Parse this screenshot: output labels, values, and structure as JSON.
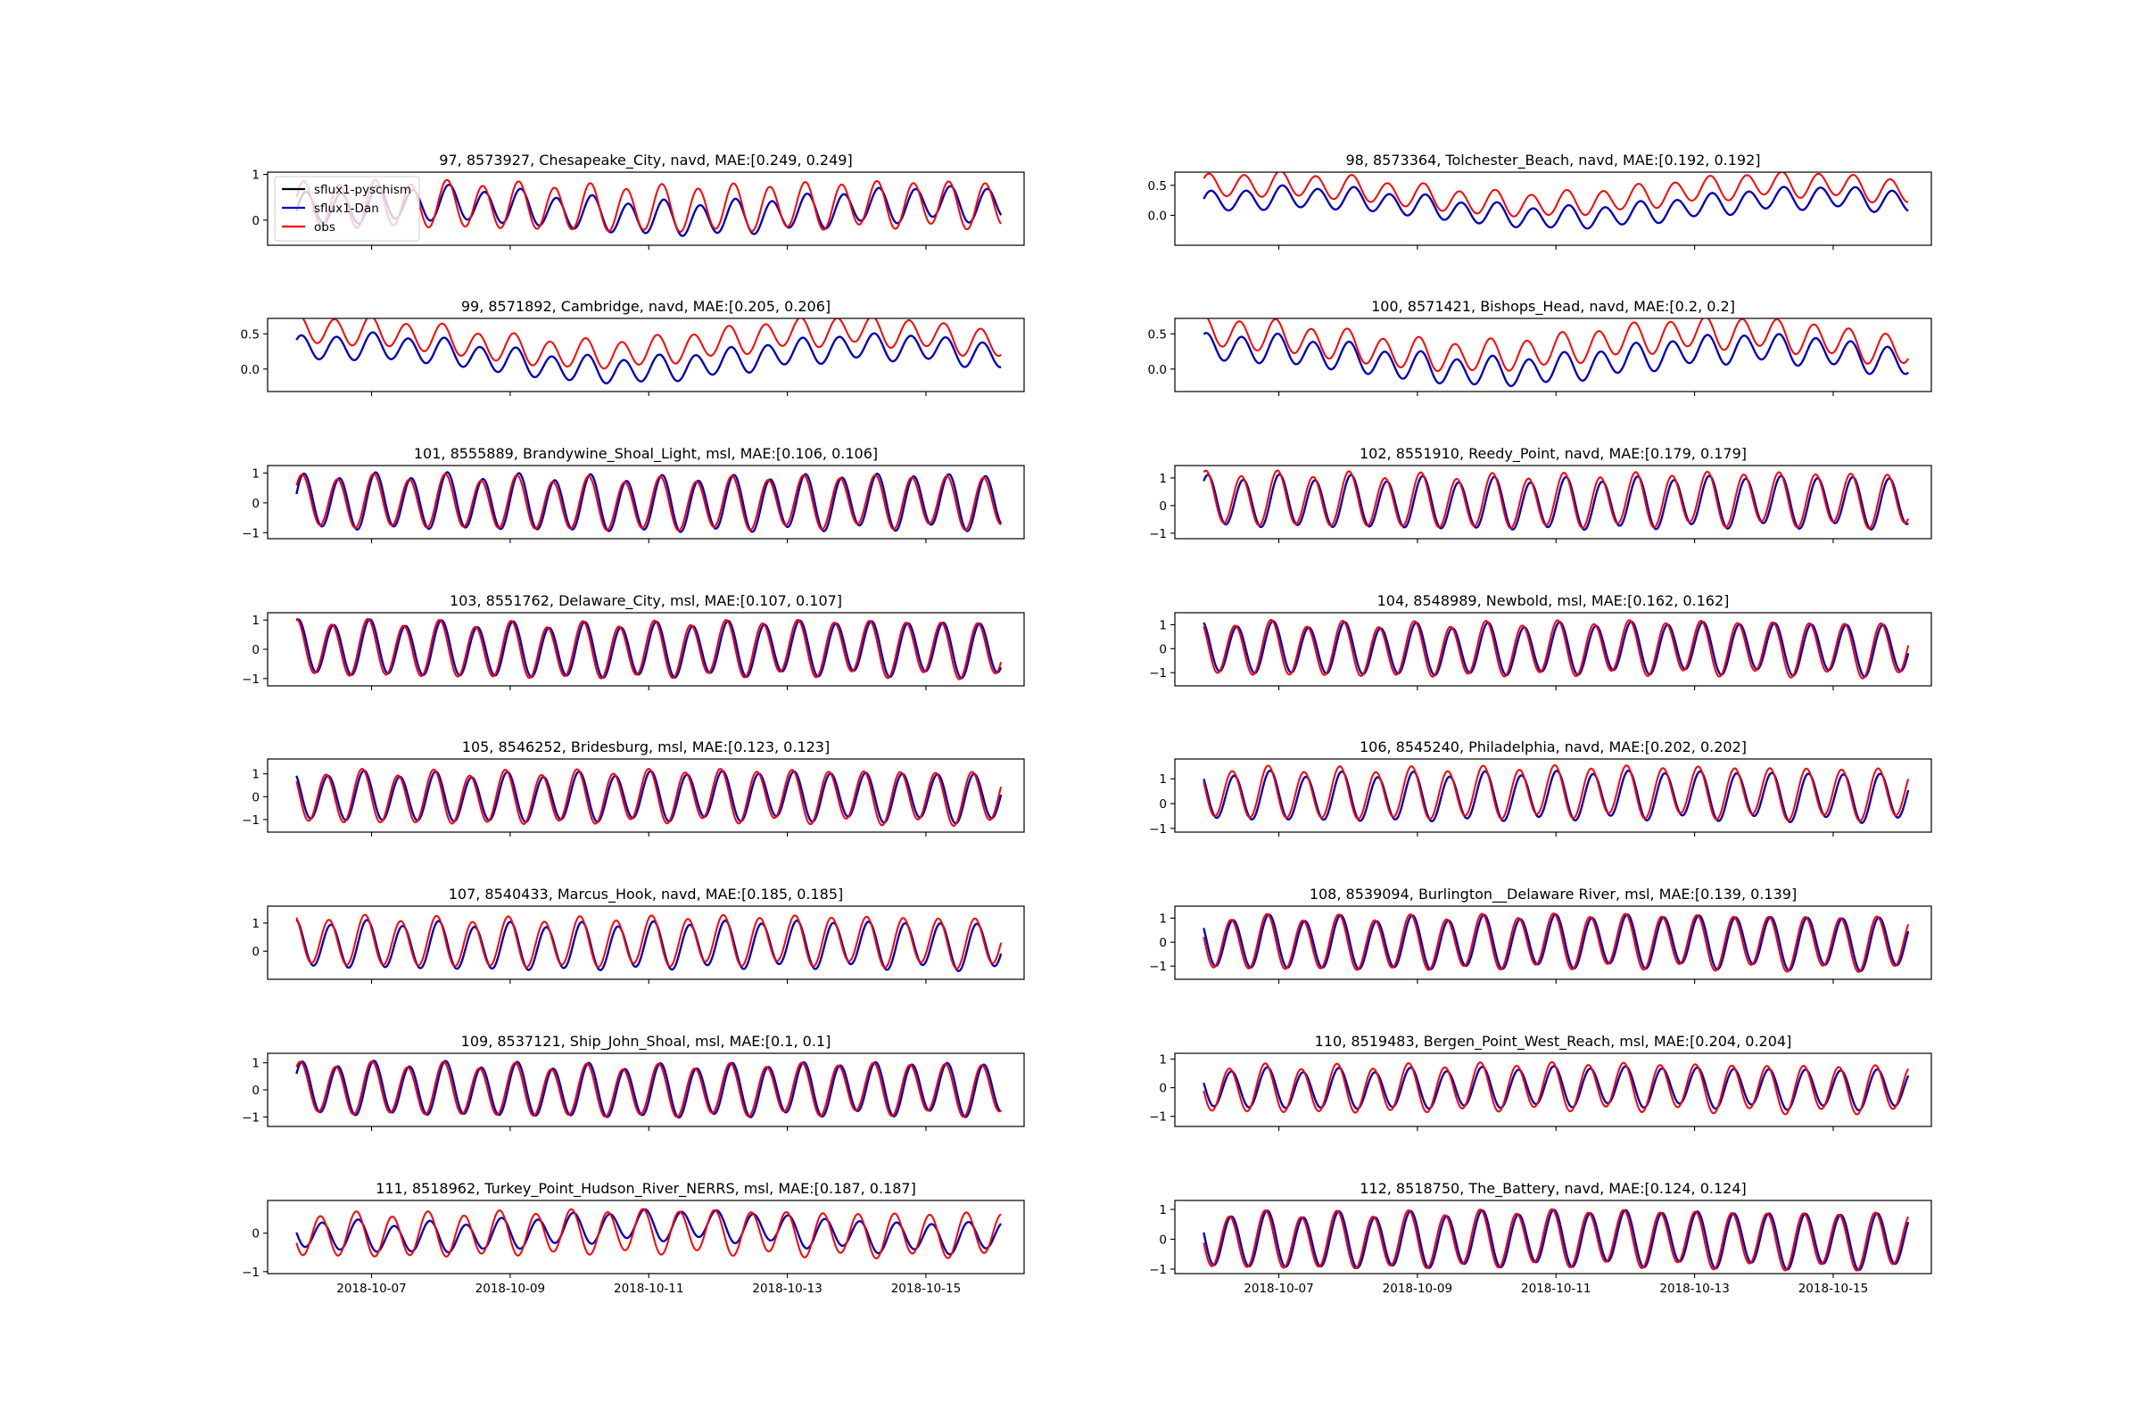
{
  "colors": {
    "sflux1-pyschism": "#000000",
    "sflux1-Dan": "#0000cc",
    "obs": "#ff0000"
  },
  "legend": [
    "sflux1-pyschism",
    "sflux1-Dan",
    "obs"
  ],
  "chart_data": [
    {
      "type": "line",
      "title": "97, 8573927, Chesapeake_City, navd, MAE:[0.249, 0.249]",
      "yticks": [
        "1",
        "0"
      ],
      "ylim": [
        -0.55,
        1.05
      ],
      "ytick_values": [
        1,
        0
      ],
      "amp": 0.4,
      "obs_amp": 0.55,
      "offset": 0.2,
      "obs_offset": 0.3,
      "phase": 0.0,
      "legend": true
    },
    {
      "type": "line",
      "title": "98, 8573364, Tolchester_Beach, navd, MAE:[0.192, 0.192]",
      "yticks": [
        "0.5",
        "0.0"
      ],
      "ytick_values": [
        0.5,
        0.0
      ],
      "ylim": [
        -0.5,
        0.72
      ],
      "amp": 0.2,
      "obs_amp": 0.22,
      "offset": 0.13,
      "obs_offset": 0.35,
      "phase": 0.4
    },
    {
      "type": "line",
      "title": "99, 8571892, Cambridge, navd, MAE:[0.205, 0.206]",
      "yticks": [
        "0.5",
        "0.0"
      ],
      "ytick_values": [
        0.5,
        0.0
      ],
      "ylim": [
        -0.32,
        0.72
      ],
      "amp": 0.2,
      "obs_amp": 0.22,
      "offset": 0.15,
      "obs_offset": 0.38,
      "phase": 0.8
    },
    {
      "type": "line",
      "title": "100, 8571421, Bishops_Head, navd, MAE:[0.2, 0.2]",
      "yticks": [
        "0.5",
        "0.0"
      ],
      "ytick_values": [
        0.5,
        0.0
      ],
      "ylim": [
        -0.32,
        0.72
      ],
      "amp": 0.22,
      "obs_amp": 0.24,
      "offset": 0.13,
      "obs_offset": 0.35,
      "phase": 1.2
    },
    {
      "type": "line",
      "title": "101, 8555889, Brandywine_Shoal_Light, msl, MAE:[0.106, 0.106]",
      "yticks": [
        "1",
        "0",
        "−1"
      ],
      "ytick_values": [
        1,
        0,
        -1
      ],
      "ylim": [
        -1.2,
        1.25
      ],
      "amp": 1.0,
      "obs_amp": 0.95,
      "offset": 0.0,
      "obs_offset": 0.0,
      "phase": 0.3
    },
    {
      "type": "line",
      "title": "102, 8551910, Reedy_Point, navd, MAE:[0.179, 0.179]",
      "yticks": [
        "1",
        "0",
        "−1"
      ],
      "ytick_values": [
        1,
        0,
        -1
      ],
      "ylim": [
        -1.2,
        1.45
      ],
      "amp": 1.0,
      "obs_amp": 1.05,
      "offset": 0.1,
      "obs_offset": 0.2,
      "phase": 0.9
    },
    {
      "type": "line",
      "title": "103, 8551762, Delaware_City, msl, MAE:[0.107, 0.107]",
      "yticks": [
        "1",
        "0",
        "−1"
      ],
      "ytick_values": [
        1,
        0,
        -1
      ],
      "ylim": [
        -1.25,
        1.25
      ],
      "amp": 1.0,
      "obs_amp": 1.03,
      "offset": 0.0,
      "obs_offset": 0.0,
      "phase": 1.3
    },
    {
      "type": "line",
      "title": "104, 8548989, Newbold, msl, MAE:[0.162, 0.162]",
      "yticks": [
        "1",
        "0",
        "−1"
      ],
      "ytick_values": [
        1,
        0,
        -1
      ],
      "ylim": [
        -1.55,
        1.5
      ],
      "amp": 1.15,
      "obs_amp": 1.22,
      "offset": 0.0,
      "obs_offset": 0.0,
      "phase": 2.0
    },
    {
      "type": "line",
      "title": "105, 8546252, Bridesburg, msl, MAE:[0.123, 0.123]",
      "yticks": [
        "1",
        "0",
        "−1"
      ],
      "ytick_values": [
        1,
        0,
        -1
      ],
      "ylim": [
        -1.55,
        1.65
      ],
      "amp": 1.15,
      "obs_amp": 1.25,
      "offset": 0.0,
      "obs_offset": 0.0,
      "phase": 2.3
    },
    {
      "type": "line",
      "title": "106, 8545240, Philadelphia, navd, MAE:[0.202, 0.202]",
      "yticks": [
        "1",
        "0",
        "−1"
      ],
      "ytick_values": [
        1,
        0,
        -1
      ],
      "ylim": [
        -1.15,
        1.8
      ],
      "amp": 1.05,
      "obs_amp": 1.12,
      "offset": 0.3,
      "obs_offset": 0.45,
      "phase": 2.5
    },
    {
      "type": "line",
      "title": "107, 8540433, Marcus_Hook, navd, MAE:[0.185, 0.185]",
      "yticks": [
        "1",
        "0"
      ],
      "ytick_values": [
        1,
        0
      ],
      "ylim": [
        -1.0,
        1.6
      ],
      "amp": 0.9,
      "obs_amp": 0.95,
      "offset": 0.2,
      "obs_offset": 0.35,
      "phase": 1.8
    },
    {
      "type": "line",
      "title": "108, 8539094, Burlington__Delaware River, msl, MAE:[0.139, 0.139]",
      "yticks": [
        "1",
        "0",
        "−1"
      ],
      "ytick_values": [
        1,
        0,
        -1
      ],
      "ylim": [
        -1.55,
        1.5
      ],
      "amp": 1.18,
      "obs_amp": 1.22,
      "offset": 0.0,
      "obs_offset": 0.0,
      "phase": 2.7
    },
    {
      "type": "line",
      "title": "109, 8537121, Ship_John_Shoal, msl, MAE:[0.1, 0.1]",
      "yticks": [
        "1",
        "0",
        "−1"
      ],
      "ytick_values": [
        1,
        0,
        -1
      ],
      "ylim": [
        -1.35,
        1.35
      ],
      "amp": 1.05,
      "obs_amp": 1.03,
      "offset": 0.0,
      "obs_offset": 0.0,
      "phase": 0.6
    },
    {
      "type": "line",
      "title": "110, 8519483, Bergen_Point_West_Reach, msl, MAE:[0.204, 0.204]",
      "yticks": [
        "1",
        "0",
        "−1"
      ],
      "ytick_values": [
        1,
        0,
        -1
      ],
      "ylim": [
        -1.35,
        1.2
      ],
      "amp": 0.75,
      "obs_amp": 0.9,
      "offset": 0.0,
      "obs_offset": 0.0,
      "phase": 3.0
    },
    {
      "type": "line",
      "title": "111, 8518962, Turkey_Point_Hudson_River_NERRS, msl, MAE:[0.187, 0.187]",
      "yticks": [
        "0",
        "−1"
      ],
      "ytick_values": [
        0,
        -1
      ],
      "ylim": [
        -1.05,
        0.85
      ],
      "amp": 0.42,
      "obs_amp": 0.62,
      "offset": 0.05,
      "obs_offset": 0.0,
      "phase": 3.3
    },
    {
      "type": "line",
      "title": "112, 8518750, The_Battery, navd, MAE:[0.124, 0.124]",
      "yticks": [
        "1",
        "0",
        "−1"
      ],
      "ytick_values": [
        1,
        0,
        -1
      ],
      "ylim": [
        -1.15,
        1.3
      ],
      "amp": 1.0,
      "obs_amp": 1.02,
      "offset": 0.0,
      "obs_offset": 0.0,
      "phase": 3.0
    }
  ],
  "x_axis": {
    "ticks": [
      "2018-10-07",
      "2018-10-09",
      "2018-10-11",
      "2018-10-13",
      "2018-10-15"
    ],
    "start": "2018-10-05T22:00",
    "end": "2018-10-16T02:00",
    "xlim": [
      "2018-10-05T12:00",
      "2018-10-16T10:00"
    ]
  }
}
